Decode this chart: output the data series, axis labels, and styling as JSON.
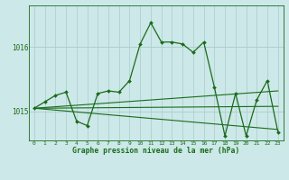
{
  "title": "Graphe pression niveau de la mer (hPa)",
  "bg_color": "#cce8e8",
  "grid_color": "#aacccc",
  "line_color": "#1a6b1a",
  "xlim": [
    -0.5,
    23.5
  ],
  "ylim": [
    1014.55,
    1016.65
  ],
  "yticks": [
    1015,
    1016
  ],
  "ytick_labels": [
    "1015",
    "1016"
  ],
  "xticks": [
    0,
    1,
    2,
    3,
    4,
    5,
    6,
    7,
    8,
    9,
    10,
    11,
    12,
    13,
    14,
    15,
    16,
    17,
    18,
    19,
    20,
    21,
    22,
    23
  ],
  "main_series": {
    "x": [
      0,
      1,
      2,
      3,
      4,
      5,
      6,
      7,
      8,
      9,
      10,
      11,
      12,
      13,
      14,
      15,
      16,
      17,
      18,
      19,
      20,
      21,
      22,
      23
    ],
    "y": [
      1015.05,
      1015.15,
      1015.25,
      1015.3,
      1014.85,
      1014.78,
      1015.28,
      1015.32,
      1015.3,
      1015.48,
      1016.05,
      1016.38,
      1016.08,
      1016.08,
      1016.05,
      1015.92,
      1016.08,
      1015.38,
      1014.62,
      1015.28,
      1014.62,
      1015.18,
      1015.48,
      1014.68
    ]
  },
  "trend_lines": [
    {
      "x": [
        0,
        23
      ],
      "y": [
        1015.05,
        1015.08
      ]
    },
    {
      "x": [
        0,
        23
      ],
      "y": [
        1015.05,
        1014.72
      ]
    },
    {
      "x": [
        0,
        23
      ],
      "y": [
        1015.05,
        1015.32
      ]
    }
  ]
}
